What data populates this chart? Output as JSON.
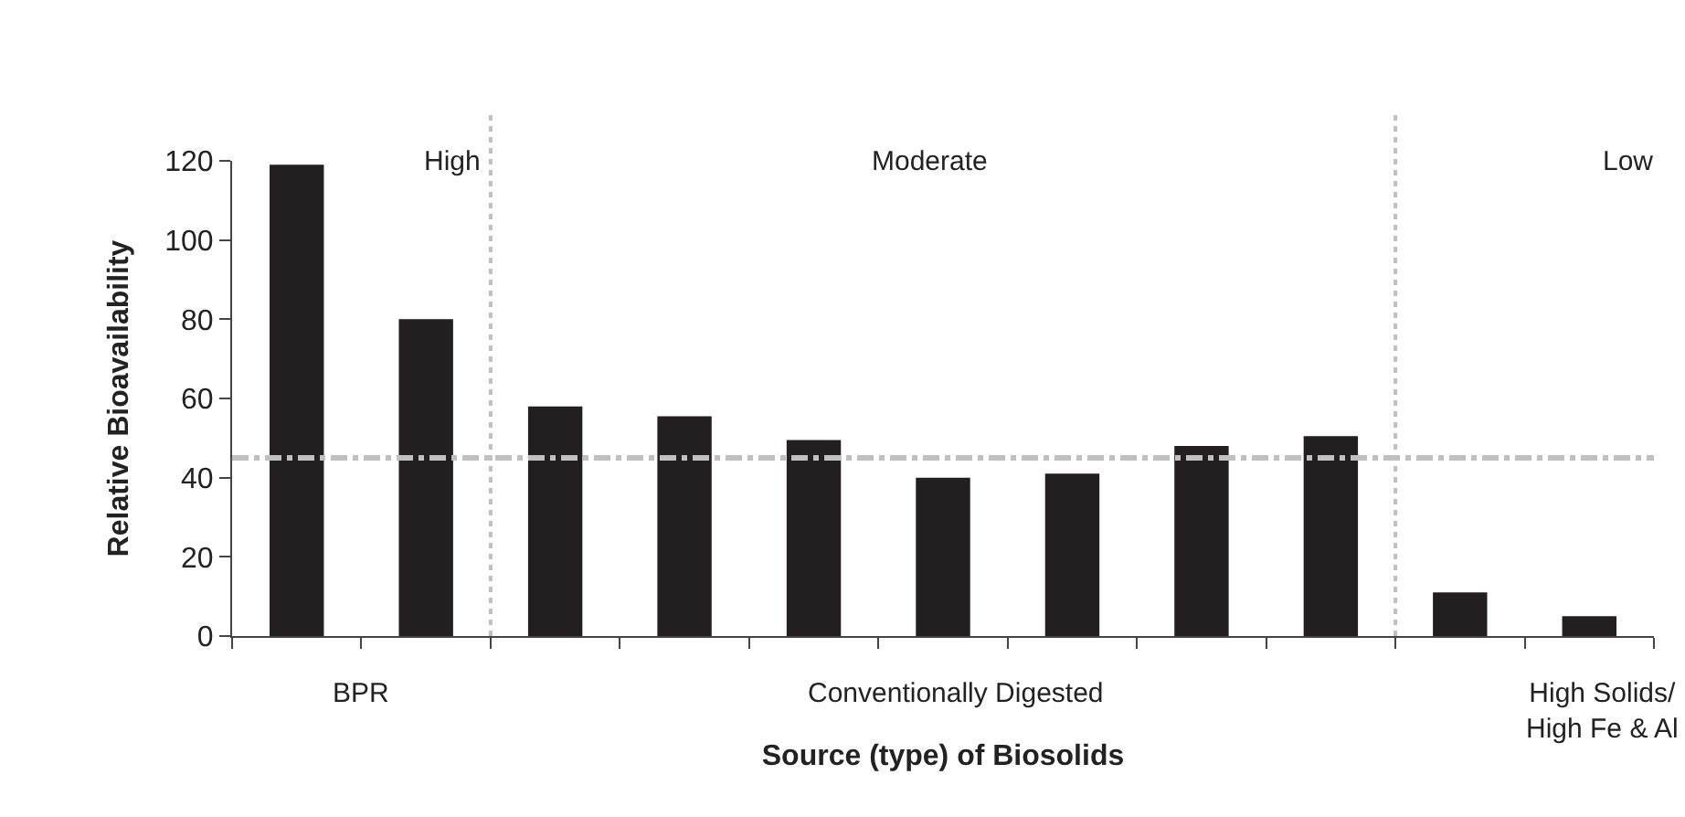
{
  "chart_data": {
    "type": "bar",
    "xlabel": "Source (type) of Biosolids",
    "ylabel": "Relative Bioavailability",
    "categories": [
      null,
      null,
      null,
      null,
      null,
      null,
      null,
      null,
      null,
      null,
      null
    ],
    "values": [
      119,
      80,
      58,
      55.5,
      49.5,
      40,
      41,
      48,
      50.5,
      11,
      5
    ],
    "color": "#231f20",
    "ylim": [
      0,
      120
    ],
    "yticks": [
      0,
      20,
      40,
      60,
      80,
      100,
      120
    ],
    "legend": false,
    "ref_lines": [
      {
        "axis": "y",
        "value": 45,
        "color": "#c0c0c4",
        "line_style": "dashed"
      }
    ],
    "annotations": [
      "High",
      "Moderate",
      "Low",
      "BPR",
      "Conventionally Digested",
      "High Solids/\nHigh Fe & Al"
    ]
  }
}
